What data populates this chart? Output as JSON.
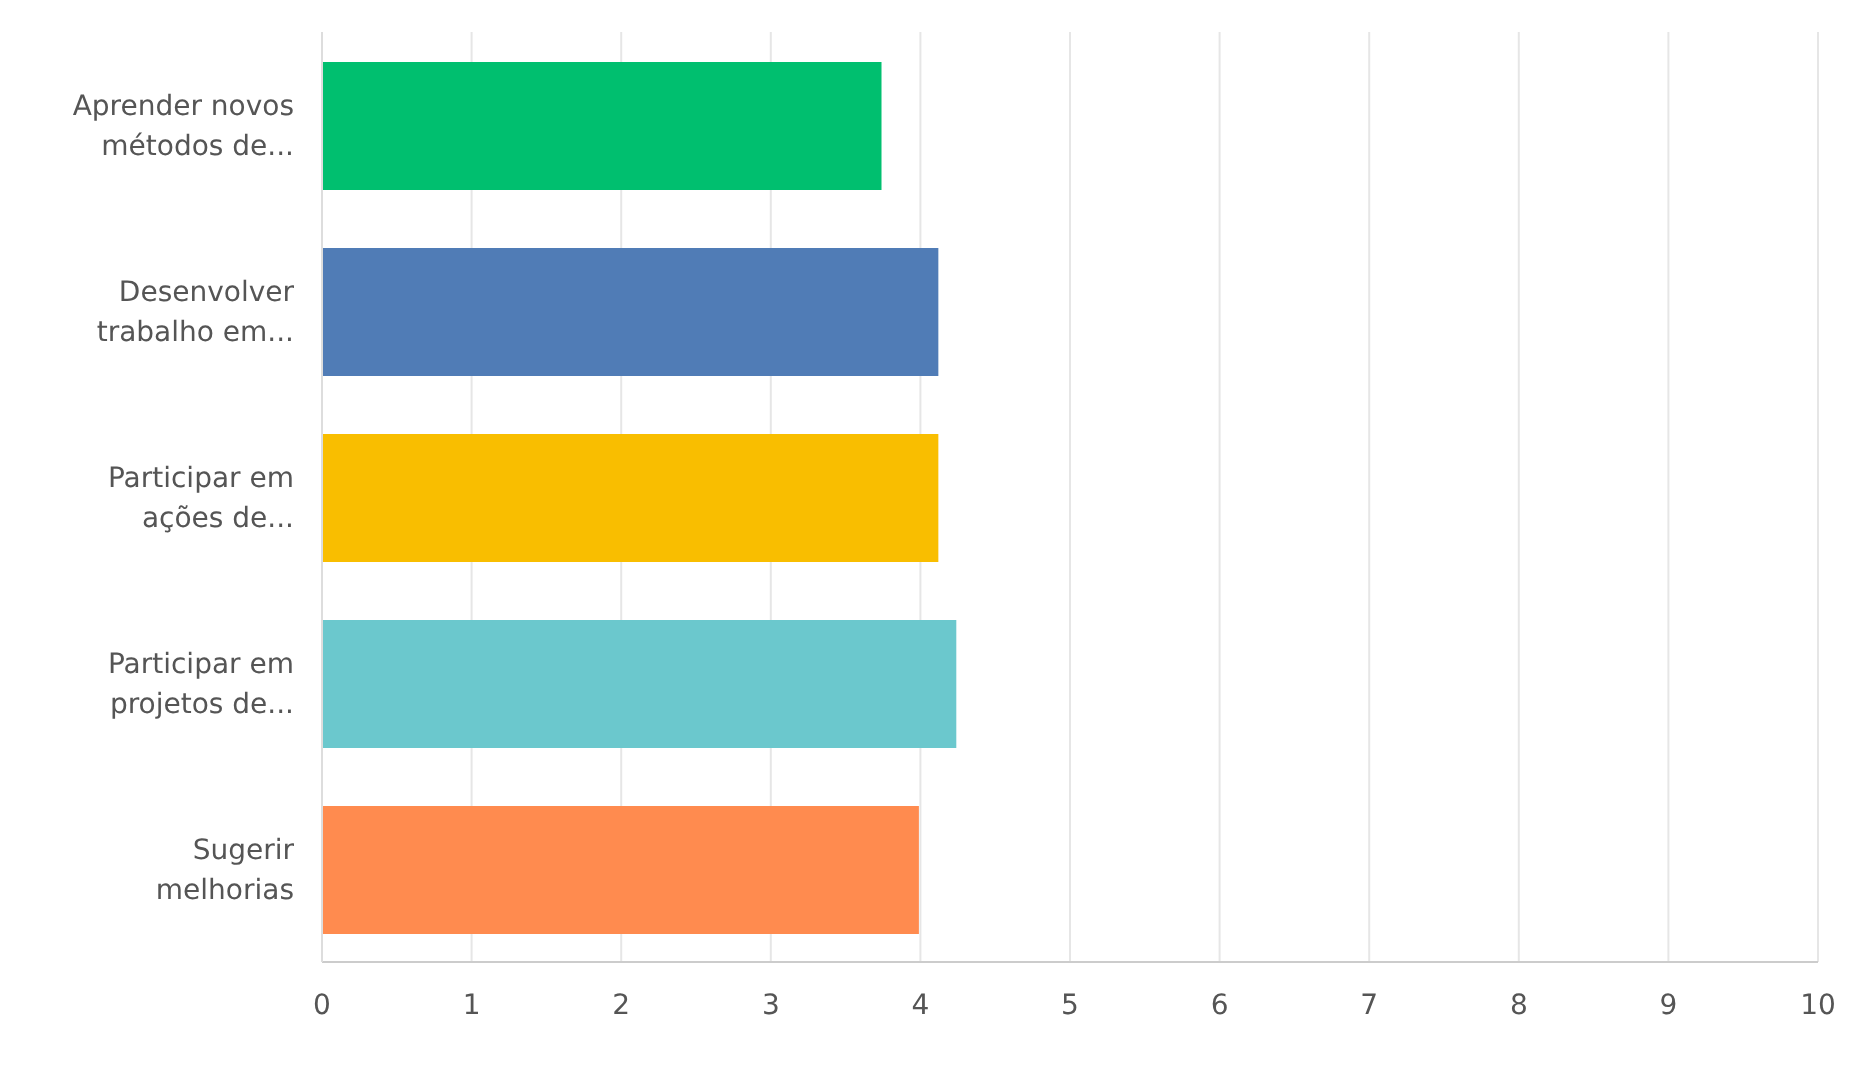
{
  "chart_data": {
    "type": "bar",
    "orientation": "horizontal",
    "categories": [
      "Aprender novos métodos de...",
      "Desenvolver trabalho em...",
      "Participar em ações de...",
      "Participar em projetos de...",
      "Sugerir melhorias"
    ],
    "values": [
      3.74,
      4.12,
      4.12,
      4.24,
      3.99
    ],
    "colors": [
      "#00bf6f",
      "#507cb6",
      "#f9be00",
      "#6bc8cd",
      "#ff8b4f"
    ],
    "xlim": [
      0,
      10
    ],
    "xticks": [
      0,
      1,
      2,
      3,
      4,
      5,
      6,
      7,
      8,
      9,
      10
    ],
    "grid": "x"
  }
}
